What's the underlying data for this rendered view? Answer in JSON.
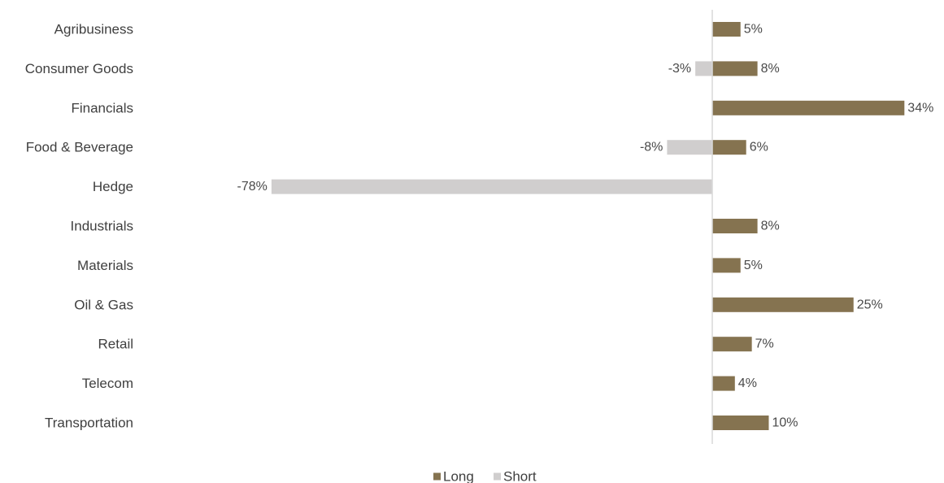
{
  "chart_data": {
    "type": "bar",
    "orientation": "horizontal",
    "categories": [
      "Agribusiness",
      "Consumer Goods",
      "Financials",
      "Food & Beverage",
      "Hedge",
      "Industrials",
      "Materials",
      "Oil & Gas",
      "Retail",
      "Telecom",
      "Transportation"
    ],
    "series": [
      {
        "name": "Long",
        "color": "#857350",
        "values": [
          5,
          8,
          34,
          6,
          null,
          8,
          5,
          25,
          7,
          4,
          10
        ],
        "labels": [
          "5%",
          "8%",
          "34%",
          "6%",
          "",
          "8%",
          "5%",
          "25%",
          "7%",
          "4%",
          "10%"
        ]
      },
      {
        "name": "Short",
        "color": "#d0cece",
        "values": [
          null,
          -3,
          null,
          -8,
          -78,
          null,
          null,
          null,
          null,
          null,
          null
        ],
        "labels": [
          "",
          "-3%",
          "",
          "-8%",
          "-78%",
          "",
          "",
          "",
          "",
          "",
          ""
        ]
      }
    ],
    "xlim": [
      -80,
      40
    ],
    "unit": "%",
    "title": "",
    "xlabel": "",
    "ylabel": "",
    "grid": false,
    "legend_position": "bottom",
    "axis_color": "#d9d9d9"
  }
}
